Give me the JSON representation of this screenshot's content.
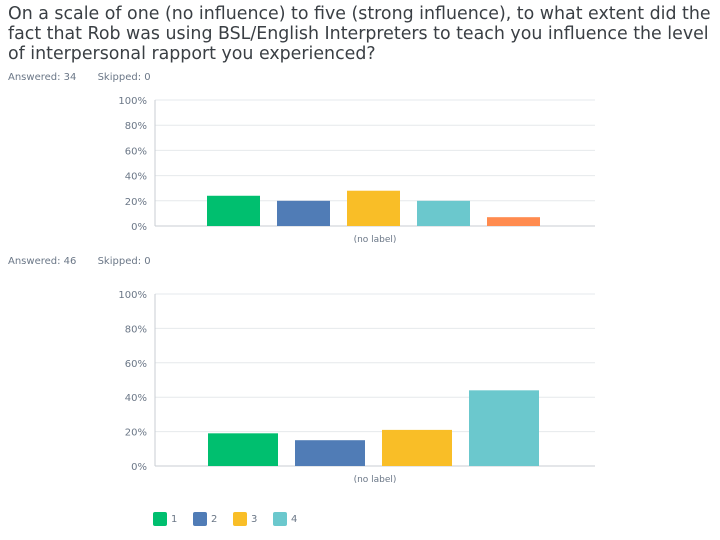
{
  "question": "On a scale of one (no influence) to five (strong influence), to what extent did the fact that Rob was using BSL/English Interpreters to teach you influence the level of interpersonal rapport you experienced?",
  "charts": [
    {
      "answered": "Answered: 34",
      "skipped": "Skipped: 0"
    },
    {
      "answered": "Answered: 46",
      "skipped": "Skipped: 0"
    }
  ],
  "colors": [
    "#00bf6f",
    "#507cb6",
    "#f9be27",
    "#6bc8cd",
    "#ff8b4f"
  ],
  "chart_data": [
    {
      "type": "bar",
      "categories": [
        "1",
        "2",
        "3",
        "4",
        "5"
      ],
      "values": [
        24,
        20,
        28,
        20,
        7
      ],
      "ylim": [
        0,
        100
      ],
      "yticks": [
        "0%",
        "20%",
        "40%",
        "60%",
        "80%",
        "100%"
      ],
      "xlabel": "(no label)",
      "grid": true
    },
    {
      "type": "bar",
      "categories": [
        "1",
        "2",
        "3",
        "4"
      ],
      "values": [
        19,
        15,
        21,
        44
      ],
      "ylim": [
        0,
        100
      ],
      "yticks": [
        "0%",
        "20%",
        "40%",
        "60%",
        "80%",
        "100%"
      ],
      "xlabel": "(no label)",
      "grid": true
    }
  ],
  "legend": [
    "1",
    "2",
    "3",
    "4"
  ]
}
